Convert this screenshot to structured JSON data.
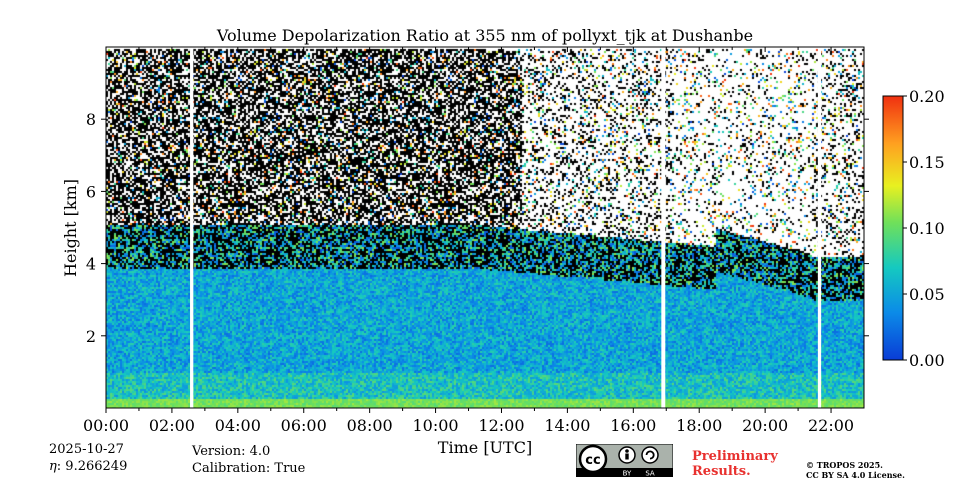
{
  "chart_data": {
    "type": "heatmap",
    "title": "Volume Depolarization Ratio at 355 nm of pollyxt_tjk at Dushanbe",
    "xlabel": "Time [UTC]",
    "ylabel": "Height [km]",
    "xlim": [
      0,
      23
    ],
    "ylim": [
      0,
      10
    ],
    "x_ticks": [
      0,
      2,
      4,
      6,
      8,
      10,
      12,
      14,
      16,
      18,
      20,
      22
    ],
    "x_tick_labels": [
      "00:00",
      "02:00",
      "04:00",
      "06:00",
      "08:00",
      "10:00",
      "12:00",
      "14:00",
      "16:00",
      "18:00",
      "20:00",
      "22:00"
    ],
    "y_ticks": [
      2,
      4,
      6,
      8
    ],
    "y_tick_labels": [
      "2",
      "4",
      "6",
      "8"
    ],
    "colorbar": {
      "min": 0.0,
      "max": 0.2,
      "ticks": [
        0.0,
        0.05,
        0.1,
        0.15,
        0.2
      ],
      "tick_labels": [
        "0.00",
        "0.05",
        "0.10",
        "0.15",
        "0.20"
      ],
      "colormap": [
        "#0a3cd6",
        "#0b8be8",
        "#15c9c0",
        "#6fe05a",
        "#e8f020",
        "#ffa020",
        "#f03010"
      ]
    },
    "data_gaps_hours": [
      [
        2.55,
        2.65
      ],
      [
        16.85,
        16.97
      ],
      [
        21.6,
        21.7
      ]
    ],
    "field_description_regions": [
      {
        "name": "boundary_layer",
        "time_start": 0,
        "time_end": 23,
        "top_km": 3.9,
        "depol_range": [
          0.02,
          0.08
        ]
      },
      {
        "name": "surface_layer",
        "time_start": 0,
        "time_end": 23,
        "top_km": 0.3,
        "depol_range": [
          0.06,
          0.1
        ]
      }
    ]
  },
  "info": {
    "date": "2025-10-27",
    "eta_label": "η",
    "eta_value": ": 9.266249",
    "version": "Version: 4.0",
    "calibration": "Calibration: True"
  },
  "license": {
    "badge_cc": "cc",
    "badge_by": "BY",
    "badge_sa": "SA",
    "preliminary_line1": "Preliminary",
    "preliminary_line2": "Results.",
    "copyright_line1": "© TROPOS 2025.",
    "copyright_line2": "CC BY SA 4.0 License."
  }
}
